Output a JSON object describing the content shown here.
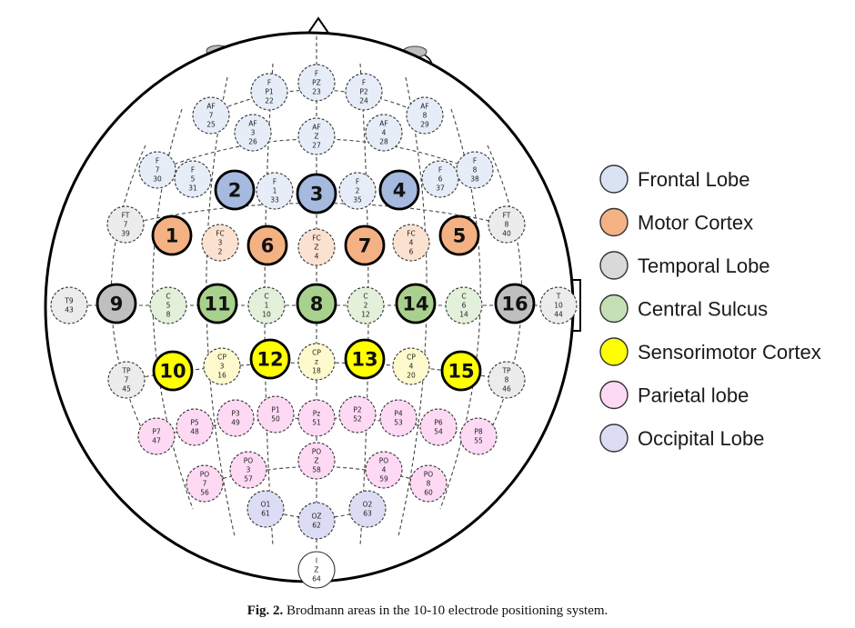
{
  "colors": {
    "frontal": "#dae3f3",
    "motor": "#f4b183",
    "temporal": "#d9d9d9",
    "central": "#c5e0b4",
    "sensorimotor": "#ffff00",
    "parietal": "#fdd9f4",
    "occipital": "#dcdcf5",
    "frontal_light": "#e6edf8",
    "motor_light": "#fbe1d0",
    "temporal_light": "#ececec",
    "central_light": "#e3f0da",
    "sensorimotor_light": "#fffacd",
    "brodmann_frontal": "#a6b9de",
    "brodmann_temporal": "#bfbfbf",
    "brodmann_central": "#a9d18e"
  },
  "legend": [
    {
      "id": "frontal",
      "label": "Frontal Lobe",
      "color": "#dae3f3"
    },
    {
      "id": "motor",
      "label": "Motor Cortex",
      "color": "#f4b183"
    },
    {
      "id": "temporal",
      "label": "Temporal Lobe",
      "color": "#d9d9d9"
    },
    {
      "id": "central",
      "label": "Central Sulcus",
      "color": "#c5e0b4"
    },
    {
      "id": "sensorimotor",
      "label": "Sensorimotor Cortex",
      "color": "#ffff00"
    },
    {
      "id": "parietal",
      "label": "Parietal lobe",
      "color": "#fdd9f4"
    },
    {
      "id": "occipital",
      "label": "Occipital Lobe",
      "color": "#dcdcf5"
    }
  ],
  "electrodes": [
    {
      "lines": [
        "F",
        "P1",
        "22"
      ],
      "group": "frontal"
    },
    {
      "lines": [
        "F",
        "PZ",
        "23"
      ],
      "group": "frontal"
    },
    {
      "lines": [
        "F",
        "P2",
        "24"
      ],
      "group": "frontal"
    },
    {
      "lines": [
        "AF",
        "7",
        "25"
      ],
      "group": "frontal"
    },
    {
      "lines": [
        "AF",
        "3",
        "26"
      ],
      "group": "frontal"
    },
    {
      "lines": [
        "AF",
        "Z",
        "27"
      ],
      "group": "frontal"
    },
    {
      "lines": [
        "AF",
        "4",
        "28"
      ],
      "group": "frontal"
    },
    {
      "lines": [
        "AF",
        "8",
        "29"
      ],
      "group": "frontal"
    },
    {
      "lines": [
        "F",
        "7",
        "30"
      ],
      "group": "frontal"
    },
    {
      "lines": [
        "F",
        "5",
        "31"
      ],
      "group": "frontal"
    },
    {
      "lines": [
        "F",
        "1",
        "33"
      ],
      "group": "frontal"
    },
    {
      "lines": [
        "F",
        "2",
        "35"
      ],
      "group": "frontal"
    },
    {
      "lines": [
        "F",
        "6",
        "37"
      ],
      "group": "frontal"
    },
    {
      "lines": [
        "F",
        "8",
        "38"
      ],
      "group": "frontal"
    },
    {
      "lines": [
        "FT",
        "7",
        "39"
      ],
      "group": "temporal"
    },
    {
      "lines": [
        "FT",
        "8",
        "40"
      ],
      "group": "temporal"
    },
    {
      "lines": [
        "FC",
        "3",
        "2"
      ],
      "group": "motor"
    },
    {
      "lines": [
        "FC",
        "Z",
        "4"
      ],
      "group": "motor"
    },
    {
      "lines": [
        "FC",
        "4",
        "6"
      ],
      "group": "motor"
    },
    {
      "lines": [
        "T9",
        "43"
      ],
      "group": "temporal"
    },
    {
      "lines": [
        "C",
        "5",
        "8"
      ],
      "group": "central"
    },
    {
      "lines": [
        "C",
        "1",
        "10"
      ],
      "group": "central"
    },
    {
      "lines": [
        "C",
        "2",
        "12"
      ],
      "group": "central"
    },
    {
      "lines": [
        "C",
        "6",
        "14"
      ],
      "group": "central"
    },
    {
      "lines": [
        "T",
        "10",
        "44"
      ],
      "group": "temporal"
    },
    {
      "lines": [
        "TP",
        "7",
        "45"
      ],
      "group": "temporal"
    },
    {
      "lines": [
        "CP",
        "3",
        "16"
      ],
      "group": "sensorimotor"
    },
    {
      "lines": [
        "CP",
        "z",
        "18"
      ],
      "group": "sensorimotor"
    },
    {
      "lines": [
        "CP",
        "4",
        "20"
      ],
      "group": "sensorimotor"
    },
    {
      "lines": [
        "TP",
        "8",
        "46"
      ],
      "group": "temporal"
    },
    {
      "lines": [
        "P7",
        "47"
      ],
      "group": "parietal"
    },
    {
      "lines": [
        "P5",
        "48"
      ],
      "group": "parietal"
    },
    {
      "lines": [
        "P3",
        "49"
      ],
      "group": "parietal"
    },
    {
      "lines": [
        "P1",
        "50"
      ],
      "group": "parietal"
    },
    {
      "lines": [
        "Pz",
        "51"
      ],
      "group": "parietal"
    },
    {
      "lines": [
        "P2",
        "52"
      ],
      "group": "parietal"
    },
    {
      "lines": [
        "P4",
        "53"
      ],
      "group": "parietal"
    },
    {
      "lines": [
        "P6",
        "54"
      ],
      "group": "parietal"
    },
    {
      "lines": [
        "P8",
        "55"
      ],
      "group": "parietal"
    },
    {
      "lines": [
        "PO",
        "7",
        "56"
      ],
      "group": "parietal"
    },
    {
      "lines": [
        "PO",
        "3",
        "57"
      ],
      "group": "parietal"
    },
    {
      "lines": [
        "PO",
        "Z",
        "58"
      ],
      "group": "parietal"
    },
    {
      "lines": [
        "PO",
        "4",
        "59"
      ],
      "group": "parietal"
    },
    {
      "lines": [
        "PO",
        "8",
        "60"
      ],
      "group": "parietal"
    },
    {
      "lines": [
        "O1",
        "61"
      ],
      "group": "occipital"
    },
    {
      "lines": [
        "OZ",
        "62"
      ],
      "group": "occipital"
    },
    {
      "lines": [
        "O2",
        "63"
      ],
      "group": "occipital"
    },
    {
      "lines": [
        "I",
        "Z",
        "64"
      ],
      "group": "none"
    }
  ],
  "brodmann": [
    {
      "label": "2",
      "group": "frontal"
    },
    {
      "label": "3",
      "group": "frontal"
    },
    {
      "label": "4",
      "group": "frontal"
    },
    {
      "label": "1",
      "group": "motor"
    },
    {
      "label": "6",
      "group": "motor"
    },
    {
      "label": "7",
      "group": "motor"
    },
    {
      "label": "5",
      "group": "motor"
    },
    {
      "label": "9",
      "group": "temporal"
    },
    {
      "label": "11",
      "group": "central"
    },
    {
      "label": "8",
      "group": "central"
    },
    {
      "label": "14",
      "group": "central"
    },
    {
      "label": "16",
      "group": "temporal"
    },
    {
      "label": "10",
      "group": "sensorimotor"
    },
    {
      "label": "12",
      "group": "sensorimotor"
    },
    {
      "label": "13",
      "group": "sensorimotor"
    },
    {
      "label": "15",
      "group": "sensorimotor"
    }
  ],
  "caption": {
    "label": "Fig. 2.",
    "text": "Brodmann areas in the 10-10 electrode positioning system."
  }
}
